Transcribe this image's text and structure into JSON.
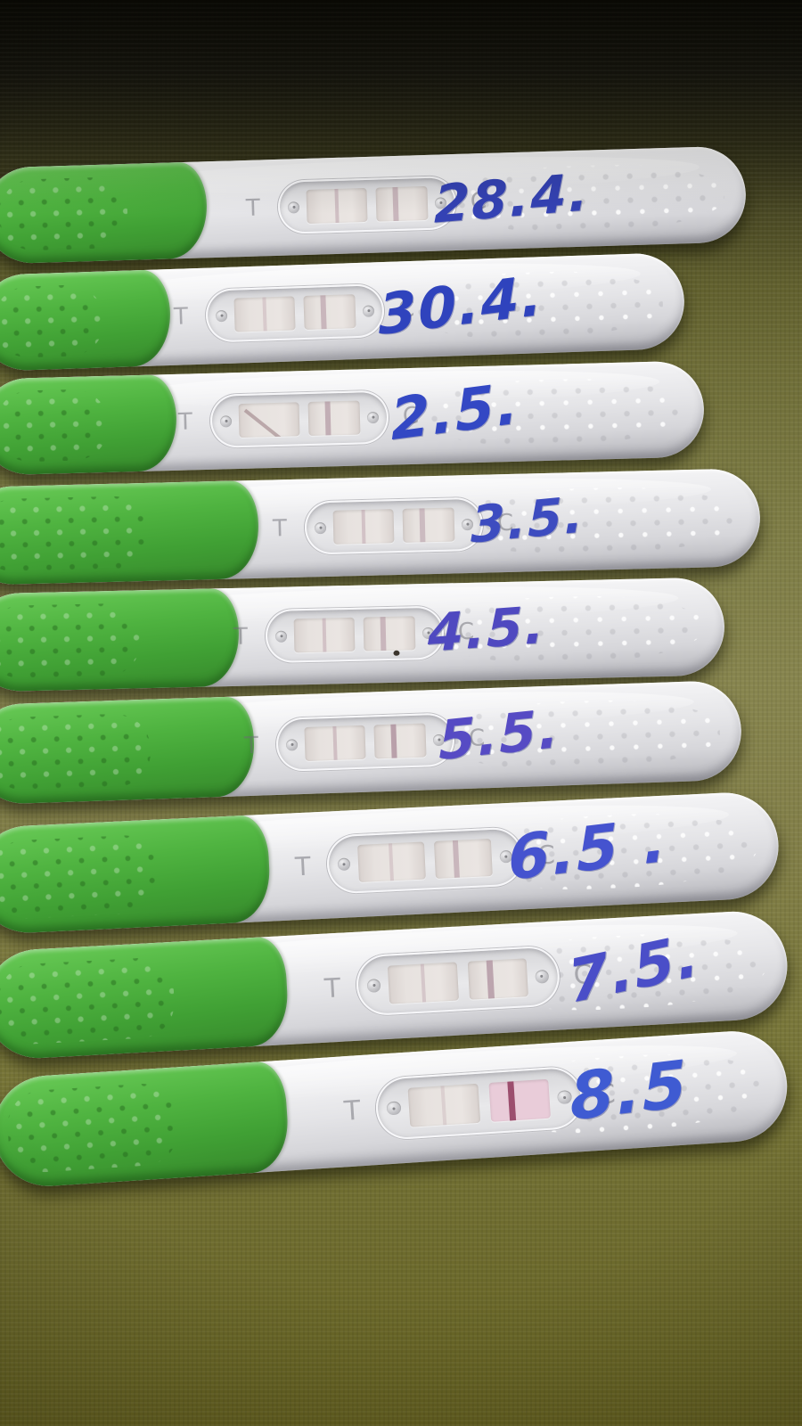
{
  "marks": {
    "test_label": "T",
    "control_label": "C"
  },
  "colors": {
    "cap_green": "#4fb340",
    "body_white": "#e9e9eb",
    "fabric_olive": "#75743c",
    "handwriting_blue": "#3847bd",
    "line_mauve": "#a98a98",
    "strong_control_pink": "#9c4e6e"
  },
  "tests": [
    {
      "date": "28.4.",
      "ink": "#3442b4",
      "test_line_opacity": 0.45,
      "control_line_opacity": 0.5
    },
    {
      "date": "30.4.",
      "ink": "#2f43bd",
      "test_line_opacity": 0.3,
      "control_line_opacity": 0.5
    },
    {
      "date": "2.5.",
      "ink": "#3348c4",
      "test_line_opacity": 0.0,
      "control_line_opacity": 0.6,
      "diagonal_smudge": true
    },
    {
      "date": "3.5.",
      "ink": "#3d4cc0",
      "test_line_opacity": 0.4,
      "control_line_opacity": 0.45
    },
    {
      "date": "4.5.",
      "ink": "#4f49c0",
      "test_line_opacity": 0.4,
      "control_line_opacity": 0.5,
      "ink_speck": true
    },
    {
      "date": "5.5.",
      "ink": "#564bc4",
      "test_line_opacity": 0.45,
      "control_line_opacity": 0.75
    },
    {
      "date": "6.5 .",
      "ink": "#4553cf",
      "test_line_opacity": 0.3,
      "control_line_opacity": 0.5
    },
    {
      "date": "7.5.",
      "ink": "#4a4ec8",
      "test_line_opacity": 0.35,
      "control_line_opacity": 0.7
    },
    {
      "date": "8.5",
      "ink": "#3f5bd2",
      "test_line_opacity": 0.25,
      "control_line_opacity": 1.0,
      "control_line_color": "#9c4e6e",
      "control_region_tint": "#e9ccd9"
    }
  ]
}
